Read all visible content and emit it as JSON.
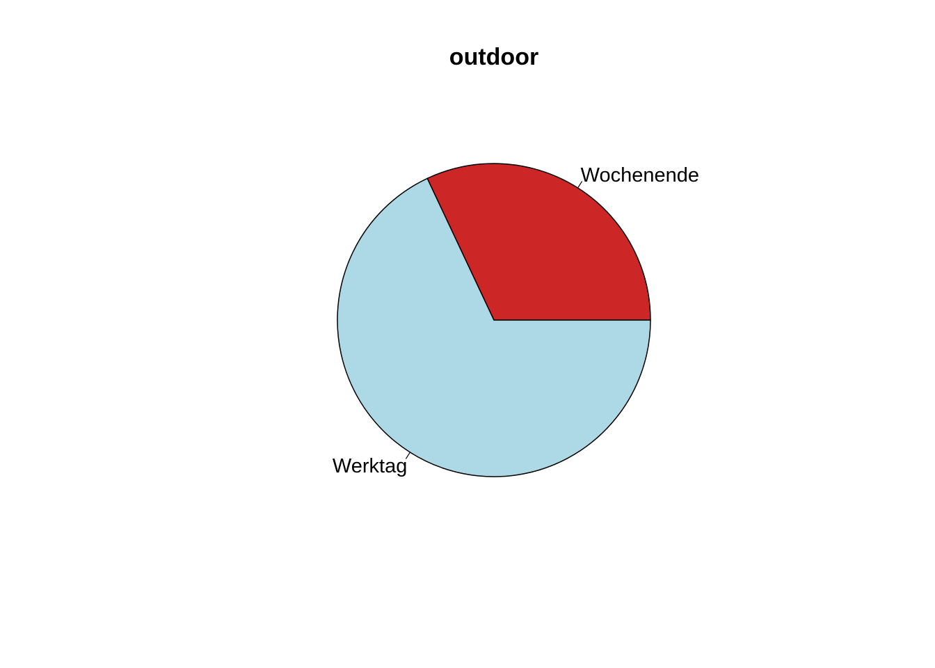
{
  "chart_data": {
    "type": "pie",
    "title": "outdoor",
    "start_angle_deg": 0,
    "direction": "counterclockwise",
    "slices": [
      {
        "label": "Wochenende",
        "value": 0.32,
        "color": "#CD2626"
      },
      {
        "label": "Werktag",
        "value": 0.68,
        "color": "#ADD8E6"
      }
    ],
    "border_color": "#000000"
  }
}
